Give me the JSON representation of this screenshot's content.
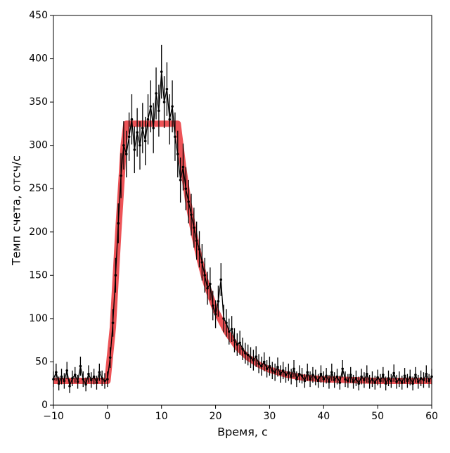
{
  "chart_data": {
    "type": "line",
    "xlabel": "Время, с",
    "ylabel": "Темп счета, отсч/с",
    "xlim": [
      -10,
      60
    ],
    "ylim": [
      0,
      450
    ],
    "xticks": [
      {
        "value": -10,
        "label": "−10"
      },
      0,
      10,
      20,
      30,
      40,
      50,
      60
    ],
    "yticks": [
      0,
      50,
      100,
      150,
      200,
      250,
      300,
      350,
      400,
      450
    ],
    "series": [
      {
        "color": "#000000",
        "x": [
          -10,
          -9.5,
          -9,
          -8.5,
          -8,
          -7.5,
          -7,
          -6.5,
          -6,
          -5.5,
          -5,
          -4.5,
          -4,
          -3.5,
          -3,
          -2.5,
          -2,
          -1.5,
          -1,
          -0.5,
          0,
          0.5,
          1,
          1.5,
          2,
          2.5,
          3,
          3.5,
          4,
          4.5,
          5,
          5.5,
          6,
          6.5,
          7,
          7.5,
          8,
          8.5,
          9,
          9.5,
          10,
          10.5,
          11,
          11.5,
          12,
          12.5,
          13,
          13.5,
          14,
          14.5,
          15,
          15.5,
          16,
          16.5,
          17,
          17.5,
          18,
          18.5,
          19,
          19.5,
          20,
          20.5,
          21,
          21.5,
          22,
          22.5,
          23,
          23.5,
          24,
          24.5,
          25,
          25.5,
          26,
          26.5,
          27,
          27.5,
          28,
          28.5,
          29,
          29.5,
          30,
          30.5,
          31,
          31.5,
          32,
          32.5,
          33,
          33.5,
          34,
          34.5,
          35,
          35.5,
          36,
          36.5,
          37,
          37.5,
          38,
          38.5,
          39,
          39.5,
          40,
          40.5,
          41,
          41.5,
          42,
          42.5,
          43,
          43.5,
          44,
          44.5,
          45,
          45.5,
          46,
          46.5,
          47,
          47.5,
          48,
          48.5,
          49,
          49.5,
          50,
          50.5,
          51,
          51.5,
          52,
          52.5,
          53,
          53.5,
          54,
          54.5,
          55,
          55.5,
          56,
          56.5,
          57,
          57.5,
          58,
          58.5,
          59,
          59.5,
          60
        ],
        "values": [
          30,
          38,
          25,
          33,
          28,
          40,
          22,
          31,
          35,
          27,
          45,
          30,
          24,
          36,
          29,
          33,
          26,
          38,
          31,
          28,
          30,
          55,
          95,
          150,
          210,
          265,
          300,
          290,
          310,
          330,
          295,
          315,
          300,
          320,
          305,
          330,
          345,
          320,
          360,
          340,
          385,
          350,
          365,
          330,
          345,
          310,
          290,
          260,
          275,
          250,
          235,
          220,
          205,
          190,
          180,
          165,
          150,
          135,
          140,
          115,
          105,
          120,
          145,
          100,
          95,
          85,
          88,
          75,
          70,
          72,
          65,
          60,
          58,
          55,
          52,
          56,
          48,
          45,
          50,
          42,
          45,
          40,
          38,
          44,
          36,
          40,
          35,
          38,
          33,
          42,
          30,
          36,
          34,
          28,
          38,
          30,
          35,
          32,
          28,
          36,
          30,
          34,
          27,
          38,
          29,
          33,
          26,
          42,
          30,
          28,
          35,
          27,
          31,
          25,
          33,
          29,
          36,
          27,
          30,
          26,
          32,
          28,
          35,
          25,
          31,
          28,
          37,
          27,
          30,
          26,
          34,
          28,
          32,
          25,
          35,
          27,
          31,
          29,
          36,
          28,
          33
        ],
        "errors": [
          9,
          10,
          8,
          9,
          9,
          10,
          8,
          9,
          9,
          8,
          11,
          9,
          8,
          10,
          9,
          9,
          8,
          10,
          9,
          9,
          9,
          12,
          16,
          20,
          23,
          26,
          28,
          27,
          28,
          29,
          27,
          28,
          28,
          29,
          28,
          29,
          30,
          29,
          30,
          30,
          31,
          30,
          31,
          29,
          30,
          28,
          27,
          26,
          27,
          25,
          25,
          24,
          23,
          22,
          21,
          21,
          20,
          19,
          19,
          17,
          16,
          18,
          19,
          16,
          16,
          15,
          15,
          14,
          13,
          14,
          13,
          12,
          12,
          12,
          12,
          12,
          11,
          11,
          11,
          10,
          11,
          10,
          10,
          11,
          10,
          10,
          9,
          10,
          9,
          10,
          9,
          10,
          9,
          8,
          10,
          9,
          9,
          9,
          8,
          10,
          9,
          9,
          8,
          10,
          9,
          9,
          8,
          10,
          9,
          8,
          9,
          8,
          9,
          8,
          9,
          9,
          10,
          8,
          9,
          8,
          9,
          8,
          9,
          8,
          9,
          8,
          10,
          8,
          9,
          8,
          9,
          8,
          9,
          8,
          9,
          8,
          9,
          9,
          10,
          8,
          9
        ]
      },
      {
        "color": "#e8282d",
        "x": [
          -10,
          0,
          1,
          2,
          3,
          3.5,
          13,
          14,
          15,
          16,
          17,
          18,
          19,
          20,
          22,
          24,
          26,
          28,
          30,
          33,
          36,
          40,
          45,
          50,
          55,
          60
        ],
        "values": [
          28,
          28,
          90,
          200,
          300,
          325,
          325,
          275,
          233,
          199,
          170,
          146,
          127,
          110,
          85,
          67,
          55,
          47,
          41,
          35.5,
          32,
          30,
          29,
          28,
          28,
          28
        ]
      }
    ]
  }
}
